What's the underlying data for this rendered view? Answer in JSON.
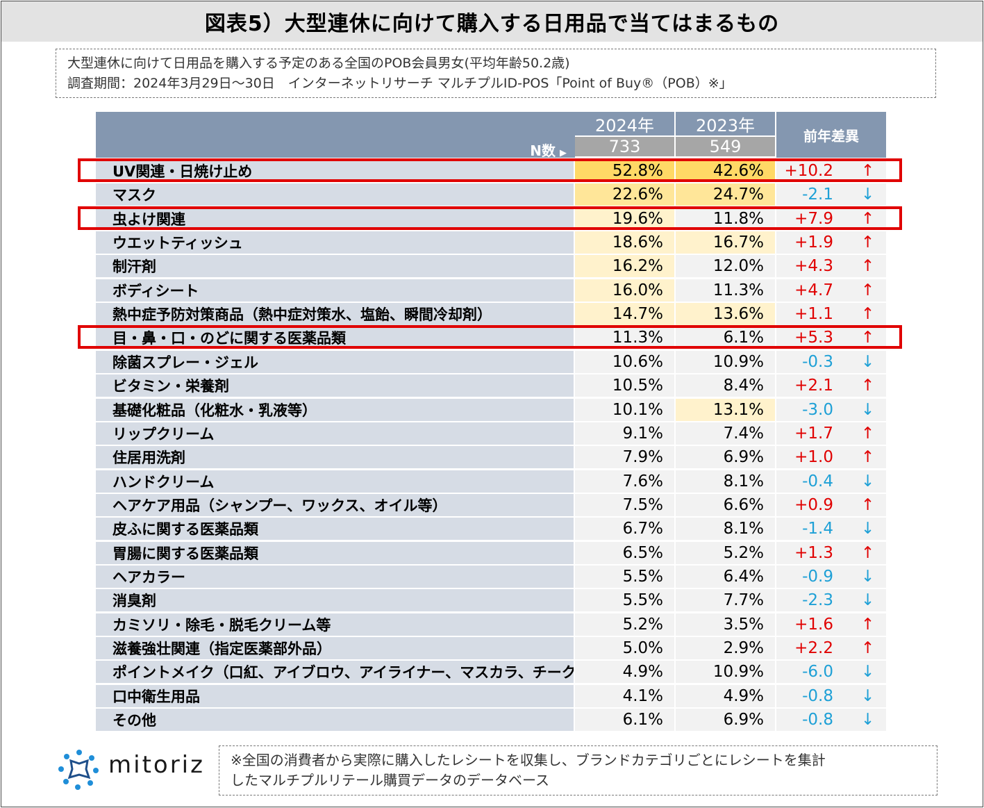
{
  "title": "図表5）大型連休に向けて購入する日用品で当てはまるもの",
  "subtitle": {
    "line1": "大型連休に向けて日用品を購入する予定のある全国のPOB会員男女(平均年齢50.2歳)",
    "line2": "調査期間：2024年3月29日～30日　インターネットリサーチ マルチプルID-POS「Point of Buy®（POB）※」"
  },
  "header": {
    "n_label": "N数",
    "n_arrow": "▶",
    "year_2024": "2024年",
    "year_2023": "2023年",
    "n_2024": "733",
    "n_2023": "549",
    "diff_label": "前年差異"
  },
  "colors": {
    "header_bg": "#8497b0",
    "label_bg": "#d6dce5",
    "positive": "#e00000",
    "negative": "#1ea0d6",
    "highlight_border": "#e00000"
  },
  "chart_data": {
    "type": "table",
    "title": "図表5）大型連休に向けて購入する日用品で当てはまるもの",
    "columns": [
      "2024年",
      "2023年",
      "前年差異"
    ],
    "rows": [
      {
        "label": "UV関連・日焼け止め",
        "v2024": "52.8%",
        "v2023": "42.6%",
        "diff": "+10.2",
        "dir": "up",
        "highlight": true
      },
      {
        "label": "マスク",
        "v2024": "22.6%",
        "v2023": "24.7%",
        "diff": "-2.1",
        "dir": "down",
        "highlight": false
      },
      {
        "label": "虫よけ関連",
        "v2024": "19.6%",
        "v2023": "11.8%",
        "diff": "+7.9",
        "dir": "up",
        "highlight": true
      },
      {
        "label": "ウエットティッシュ",
        "v2024": "18.6%",
        "v2023": "16.7%",
        "diff": "+1.9",
        "dir": "up",
        "highlight": false
      },
      {
        "label": "制汗剤",
        "v2024": "16.2%",
        "v2023": "12.0%",
        "diff": "+4.3",
        "dir": "up",
        "highlight": false
      },
      {
        "label": "ボディシート",
        "v2024": "16.0%",
        "v2023": "11.3%",
        "diff": "+4.7",
        "dir": "up",
        "highlight": false
      },
      {
        "label": "熱中症予防対策商品（熱中症対策水、塩飴、瞬間冷却剤）",
        "v2024": "14.7%",
        "v2023": "13.6%",
        "diff": "+1.1",
        "dir": "up",
        "highlight": false
      },
      {
        "label": "目・鼻・口・のどに関する医薬品類",
        "v2024": "11.3%",
        "v2023": "6.1%",
        "diff": "+5.3",
        "dir": "up",
        "highlight": true
      },
      {
        "label": "除菌スプレー・ジェル",
        "v2024": "10.6%",
        "v2023": "10.9%",
        "diff": "-0.3",
        "dir": "down",
        "highlight": false
      },
      {
        "label": "ビタミン・栄養剤",
        "v2024": "10.5%",
        "v2023": "8.4%",
        "diff": "+2.1",
        "dir": "up",
        "highlight": false
      },
      {
        "label": "基礎化粧品（化粧水・乳液等）",
        "v2024": "10.1%",
        "v2023": "13.1%",
        "diff": "-3.0",
        "dir": "down",
        "highlight": false
      },
      {
        "label": "リップクリーム",
        "v2024": "9.1%",
        "v2023": "7.4%",
        "diff": "+1.7",
        "dir": "up",
        "highlight": false
      },
      {
        "label": "住居用洗剤",
        "v2024": "7.9%",
        "v2023": "6.9%",
        "diff": "+1.0",
        "dir": "up",
        "highlight": false
      },
      {
        "label": "ハンドクリーム",
        "v2024": "7.6%",
        "v2023": "8.1%",
        "diff": "-0.4",
        "dir": "down",
        "highlight": false
      },
      {
        "label": "ヘアケア用品（シャンプー、ワックス、オイル等）",
        "v2024": "7.5%",
        "v2023": "6.6%",
        "diff": "+0.9",
        "dir": "up",
        "highlight": false
      },
      {
        "label": "皮ふに関する医薬品類",
        "v2024": "6.7%",
        "v2023": "8.1%",
        "diff": "-1.4",
        "dir": "down",
        "highlight": false
      },
      {
        "label": "胃腸に関する医薬品類",
        "v2024": "6.5%",
        "v2023": "5.2%",
        "diff": "+1.3",
        "dir": "up",
        "highlight": false
      },
      {
        "label": "ヘアカラー",
        "v2024": "5.5%",
        "v2023": "6.4%",
        "diff": "-0.9",
        "dir": "down",
        "highlight": false
      },
      {
        "label": "消臭剤",
        "v2024": "5.5%",
        "v2023": "7.7%",
        "diff": "-2.3",
        "dir": "down",
        "highlight": false
      },
      {
        "label": "カミソリ・除毛・脱毛クリーム等",
        "v2024": "5.2%",
        "v2023": "3.5%",
        "diff": "+1.6",
        "dir": "up",
        "highlight": false
      },
      {
        "label": "滋養強壮関連（指定医薬部外品）",
        "v2024": "5.0%",
        "v2023": "2.9%",
        "diff": "+2.2",
        "dir": "up",
        "highlight": false
      },
      {
        "label": "ポイントメイク（口紅、アイブロウ、アイライナー、マスカラ、チーク等）",
        "v2024": "4.9%",
        "v2023": "10.9%",
        "diff": "-6.0",
        "dir": "down",
        "highlight": false
      },
      {
        "label": "口中衛生用品",
        "v2024": "4.1%",
        "v2023": "4.9%",
        "diff": "-0.8",
        "dir": "down",
        "highlight": false
      },
      {
        "label": "その他",
        "v2024": "6.1%",
        "v2023": "6.9%",
        "diff": "-0.8",
        "dir": "down",
        "highlight": false
      }
    ]
  },
  "logo_text": "mitoriz",
  "footnote": {
    "line1": "※全国の消費者から実際に購入したレシートを収集し、ブランドカテゴリごとにレシートを集計",
    "line2": "したマルチプルリテール購買データのデータベース"
  }
}
